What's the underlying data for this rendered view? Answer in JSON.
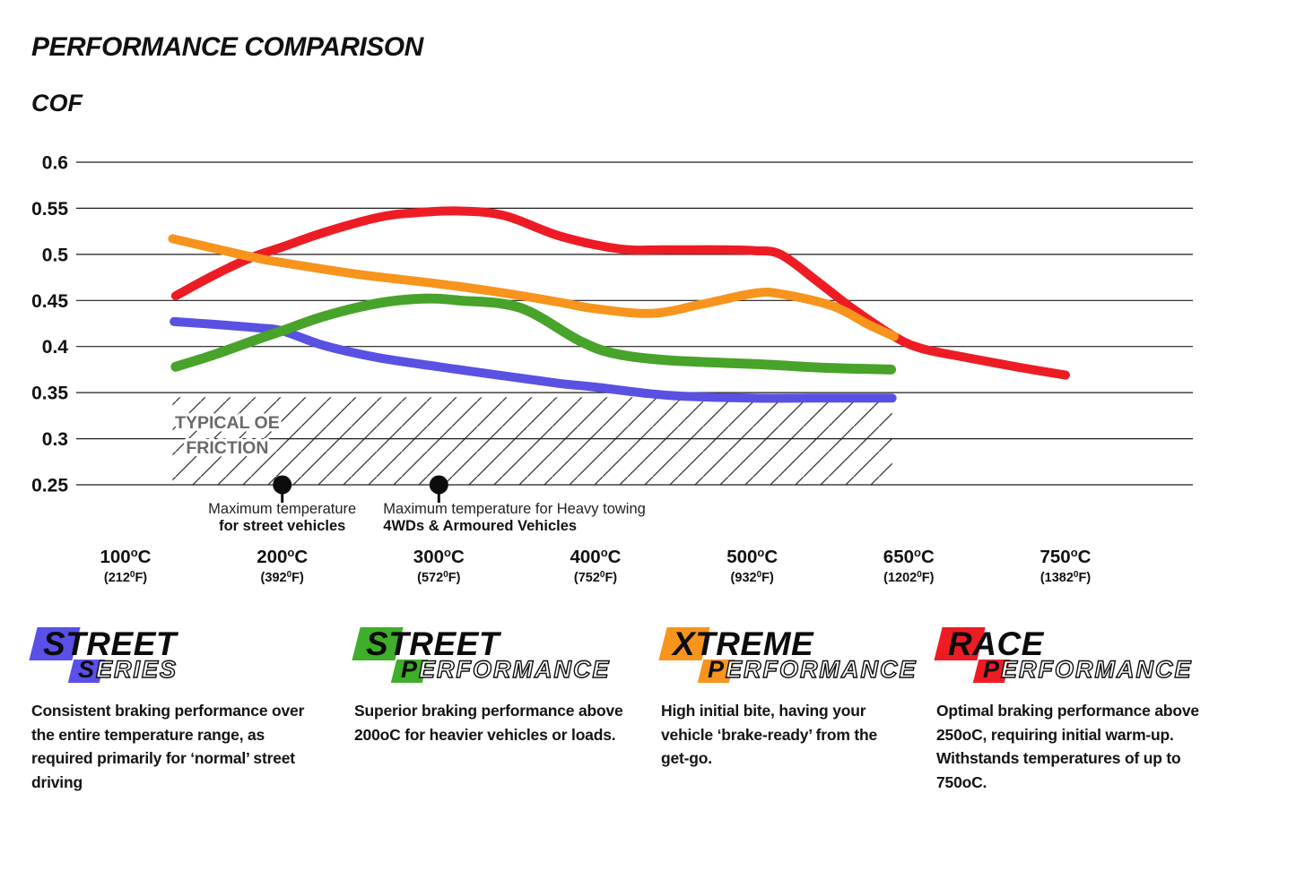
{
  "header": {
    "title": "PERFORMANCE COMPARISON",
    "axis_label": "COF"
  },
  "chart_data": {
    "type": "line",
    "title": "PERFORMANCE COMPARISON",
    "ylabel": "COF",
    "xlabel": "",
    "grid": true,
    "legend_position": "bottom",
    "ylim": [
      0.25,
      0.6
    ],
    "y_ticks": [
      0.6,
      0.55,
      0.5,
      0.45,
      0.4,
      0.35,
      0.3,
      0.25
    ],
    "x_ticks": [
      {
        "temp": 100,
        "label_c": [
          "100",
          "o",
          "C"
        ],
        "label_f": [
          "(212",
          "0",
          "F)"
        ]
      },
      {
        "temp": 200,
        "label_c": [
          "200",
          "o",
          "C"
        ],
        "label_f": [
          "(392",
          "0",
          "F)"
        ]
      },
      {
        "temp": 300,
        "label_c": [
          "300",
          "o",
          "C"
        ],
        "label_f": [
          "(572",
          "0",
          "F)"
        ]
      },
      {
        "temp": 400,
        "label_c": [
          "400",
          "o",
          "C"
        ],
        "label_f": [
          "(752",
          "0",
          "F)"
        ]
      },
      {
        "temp": 500,
        "label_c": [
          "500",
          "o",
          "C"
        ],
        "label_f": [
          "(932",
          "0",
          "F)"
        ]
      },
      {
        "temp": 650,
        "label_c": [
          "650",
          "o",
          "C"
        ],
        "label_f": [
          "(1202",
          "0",
          "F)"
        ]
      },
      {
        "temp": 750,
        "label_c": [
          "750",
          "o",
          "C"
        ],
        "label_f": [
          "(1382",
          "0",
          "F)"
        ]
      }
    ],
    "series": [
      {
        "name": "Race Performance",
        "color": "#ed1c24",
        "stroke_width": 10,
        "points": [
          [
            132,
            0.455
          ],
          [
            157,
            0.478
          ],
          [
            181,
            0.497
          ],
          [
            200,
            0.508
          ],
          [
            227,
            0.524
          ],
          [
            261,
            0.54
          ],
          [
            284,
            0.545
          ],
          [
            313,
            0.547
          ],
          [
            342,
            0.542
          ],
          [
            377,
            0.52
          ],
          [
            415,
            0.506
          ],
          [
            445,
            0.505
          ],
          [
            479,
            0.505
          ],
          [
            502,
            0.504
          ],
          [
            527,
            0.5
          ],
          [
            561,
            0.472
          ],
          [
            594,
            0.443
          ],
          [
            636,
            0.411
          ],
          [
            658,
            0.398
          ],
          [
            687,
            0.388
          ],
          [
            722,
            0.377
          ],
          [
            750,
            0.369
          ]
        ]
      },
      {
        "name": "Xtreme Performance",
        "color": "#f7941d",
        "stroke_width": 10,
        "points": [
          [
            130,
            0.517
          ],
          [
            181,
            0.497
          ],
          [
            200,
            0.491
          ],
          [
            250,
            0.478
          ],
          [
            300,
            0.468
          ],
          [
            342,
            0.458
          ],
          [
            377,
            0.448
          ],
          [
            400,
            0.441
          ],
          [
            436,
            0.436
          ],
          [
            468,
            0.446
          ],
          [
            503,
            0.458
          ],
          [
            528,
            0.457
          ],
          [
            577,
            0.444
          ],
          [
            611,
            0.424
          ],
          [
            636,
            0.411
          ]
        ]
      },
      {
        "name": "Street Series",
        "color": "#5951e1",
        "stroke_width": 10,
        "points": [
          [
            131,
            0.427
          ],
          [
            157,
            0.424
          ],
          [
            186,
            0.42
          ],
          [
            200,
            0.417
          ],
          [
            227,
            0.401
          ],
          [
            261,
            0.388
          ],
          [
            300,
            0.378
          ],
          [
            342,
            0.368
          ],
          [
            377,
            0.36
          ],
          [
            400,
            0.356
          ],
          [
            434,
            0.349
          ],
          [
            457,
            0.346
          ],
          [
            500,
            0.344
          ],
          [
            553,
            0.344
          ],
          [
            634,
            0.344
          ]
        ]
      },
      {
        "name": "Street Performance",
        "color": "#47a32a",
        "stroke_width": 11,
        "points": [
          [
            132,
            0.378
          ],
          [
            158,
            0.392
          ],
          [
            186,
            0.409
          ],
          [
            200,
            0.417
          ],
          [
            227,
            0.433
          ],
          [
            261,
            0.447
          ],
          [
            290,
            0.452
          ],
          [
            313,
            0.45
          ],
          [
            352,
            0.442
          ],
          [
            390,
            0.406
          ],
          [
            413,
            0.392
          ],
          [
            447,
            0.385
          ],
          [
            503,
            0.381
          ],
          [
            569,
            0.377
          ],
          [
            633,
            0.375
          ]
        ]
      }
    ],
    "oe_region": {
      "label_line1": "TYPICAL OE",
      "label_line2": "FRICTION",
      "label_color": "#6a6a6a",
      "cof_top": 0.345,
      "cof_bottom": 0.25,
      "temp_start": 130,
      "temp_end": 634
    },
    "markers": [
      {
        "temp": 200,
        "align": "center",
        "line1": "Maximum temperature",
        "line2": "for street vehicles"
      },
      {
        "temp": 300,
        "align": "left",
        "line1": "Maximum temperature for Heavy towing",
        "line2": "4WDs & Armoured Vehicles"
      }
    ]
  },
  "legend": {
    "items": [
      {
        "id": "street-series",
        "color": "#5a50e8",
        "word1_first": "S",
        "word1_rest": "TREET",
        "word2_first": "S",
        "word2_rest": "ERIES",
        "description": "Consistent braking performance over the entire temperature range, as required primarily for ‘normal’ street driving"
      },
      {
        "id": "street-performance",
        "color": "#3fae2a",
        "word1_first": "S",
        "word1_rest": "TREET",
        "word2_first": "P",
        "word2_rest": "ERFORMANCE",
        "description": "Superior braking performance above 200oC for heavier vehicles or loads."
      },
      {
        "id": "xtreme-performance",
        "color": "#f7941d",
        "word1_first": "X",
        "word1_rest": "TREME",
        "word2_first": "P",
        "word2_rest": "ERFORMANCE",
        "description": "High initial bite, having your vehicle ‘brake-ready’ from the get-go."
      },
      {
        "id": "race-performance",
        "color": "#ed1c24",
        "word1_first": "R",
        "word1_rest": "ACE",
        "word2_first": "P",
        "word2_rest": "ERFORMANCE",
        "description": "Optimal braking performance above 250oC, requiring initial warm-up. Withstands temperatures of up to 750oC."
      }
    ]
  }
}
